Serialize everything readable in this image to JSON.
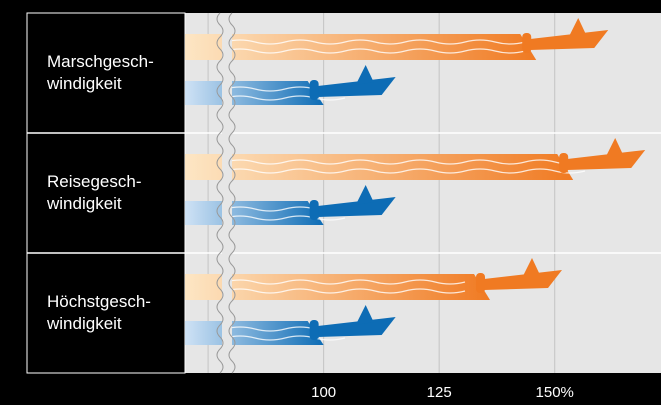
{
  "chart_data": {
    "type": "bar",
    "orientation": "horizontal",
    "categories": [
      "Marschgesch-\nwindigkeit",
      "Reisegesch-\nwindigkeit",
      "Höchstgesch-\nwindigkeit"
    ],
    "series": [
      {
        "color": "#f07a22",
        "values": [
          146,
          154,
          136
        ]
      },
      {
        "color": "#0d6cb5",
        "values": [
          100,
          100,
          100
        ]
      }
    ],
    "xlim": [
      70,
      173
    ],
    "xticks": [
      {
        "value": 75,
        "label": null
      },
      100,
      125,
      {
        "value": 150,
        "label": "150%"
      }
    ],
    "grid": true
  }
}
